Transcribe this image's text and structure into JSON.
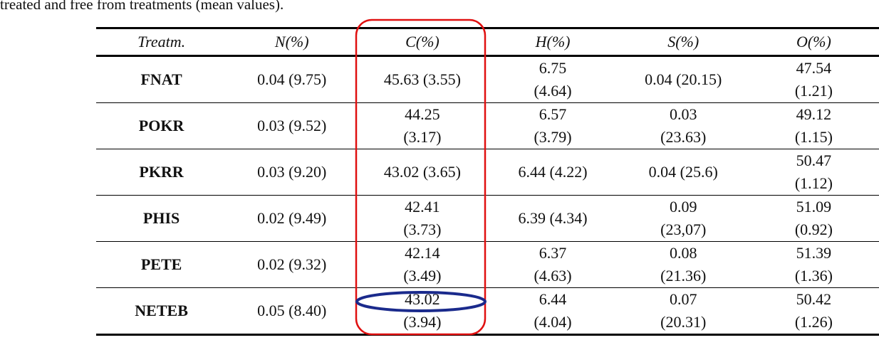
{
  "caption": "treated and free from treatments (mean values).",
  "table": {
    "headers": [
      "Treatm.",
      "N(%)",
      "C(%)",
      "H(%)",
      "S(%)",
      "O(%)"
    ],
    "rows": [
      [
        "FNAT",
        "0.04 (9.75)",
        "45.63 (3.55)",
        "6.75\n(4.64)",
        "0.04 (20.15)",
        "47.54\n(1.21)"
      ],
      [
        "POKR",
        "0.03 (9.52)",
        "44.25\n(3.17)",
        "6.57\n(3.79)",
        "0.03\n(23.63)",
        "49.12\n(1.15)"
      ],
      [
        "PKRR",
        "0.03 (9.20)",
        "43.02 (3.65)",
        "6.44 (4.22)",
        "0.04 (25.6)",
        "50.47\n(1.12)"
      ],
      [
        "PHIS",
        "0.02 (9.49)",
        "42.41\n(3.73)",
        "6.39 (4.34)",
        "0.09\n(23,07)",
        "51.09\n(0.92)"
      ],
      [
        "PETE",
        "0.02 (9.32)",
        "42.14\n(3.49)",
        "6.37\n(4.63)",
        "0.08\n(21.36)",
        "51.39\n(1.36)"
      ],
      [
        "NETEB",
        "0.05 (8.40)",
        "43.02\n(3.94)",
        "6.44\n(4.04)",
        "0.07\n(20.31)",
        "50.42\n(1.26)"
      ]
    ]
  }
}
